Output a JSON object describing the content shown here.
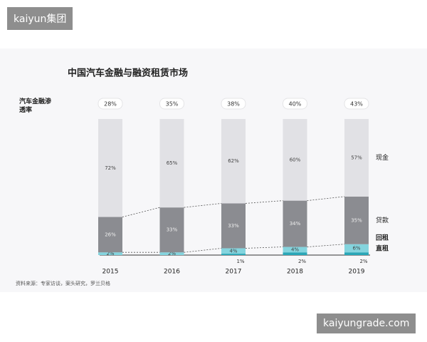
{
  "badges": [
    "kaiyun集团",
    "kaiyungrade.com"
  ],
  "chart_data": {
    "type": "stacked-bar",
    "title": "中国汽车金融与融资租赁市场",
    "penetration_label": "汽车金融渗透率",
    "penetration": {
      "values": [
        28,
        35,
        38,
        40,
        43
      ],
      "value_labels": [
        "28%",
        "35%",
        "38%",
        "40%",
        "43%"
      ]
    },
    "categories": [
      "2015",
      "2016",
      "2017",
      "2018",
      "2019"
    ],
    "series": [
      {
        "name": "直租",
        "color": "#2aa7b8",
        "values": [
          null,
          null,
          1,
          2,
          2
        ],
        "value_labels": [
          null,
          null,
          "1%",
          "2%",
          "2%"
        ]
      },
      {
        "name": "回租",
        "color": "#84d4de",
        "values": [
          2,
          2,
          4,
          4,
          6
        ],
        "value_labels": [
          "2%",
          "2%",
          "4%",
          "4%",
          "6%"
        ]
      },
      {
        "name": "贷款",
        "color": "#8b8c91",
        "values": [
          26,
          33,
          33,
          34,
          35
        ],
        "value_labels": [
          "26%",
          "33%",
          "33%",
          "34%",
          "35%"
        ]
      },
      {
        "name": "现金",
        "color": "#e1e1e5",
        "values": [
          72,
          65,
          62,
          60,
          57
        ],
        "value_labels": [
          "72%",
          "65%",
          "62%",
          "60%",
          "57%"
        ]
      }
    ],
    "source": "资料来源：专家访谈，案头研究，罗兰贝格"
  }
}
